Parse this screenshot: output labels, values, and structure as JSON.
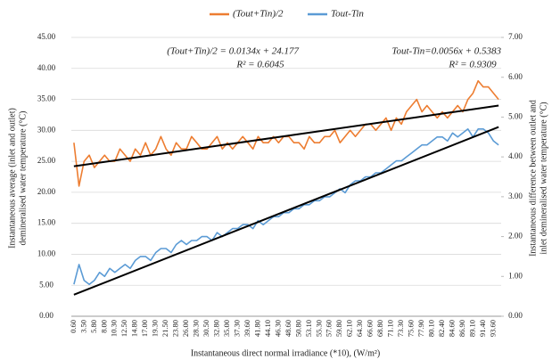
{
  "chart_data": {
    "type": "line",
    "x_label": "Instantaneous direct normal irradiance (*10), (W/m²)",
    "y_label": [
      "Instantaneous average (inlet and outlet)",
      "demineralised water temperature (°C)"
    ],
    "y2_label": [
      "Instantaneous difference between outlet and",
      "inlet demineralised water temperature (°C)"
    ],
    "categories": [
      "0.60",
      null,
      "3.50",
      null,
      "5.80",
      null,
      "8.00",
      null,
      "10.30",
      null,
      "12.50",
      null,
      "14.80",
      null,
      "17.00",
      null,
      "19.30",
      null,
      "21.50",
      null,
      "23.80",
      null,
      "26.00",
      null,
      "28.30",
      null,
      "30.50",
      null,
      "32.80",
      null,
      "35.00",
      null,
      "37.30",
      null,
      "39.60",
      null,
      "41.80",
      null,
      "44.10",
      null,
      "46.30",
      null,
      "48.60",
      null,
      "50.80",
      null,
      "53.10",
      null,
      "55.30",
      null,
      "57.60",
      null,
      "59.80",
      null,
      "62.10",
      null,
      "64.30",
      null,
      "66.60",
      null,
      "68.80",
      null,
      "71.10",
      null,
      "73.30",
      null,
      "75.60",
      null,
      "77.90",
      null,
      "80.10",
      null,
      "82.40",
      null,
      "84.60",
      null,
      "86.90",
      null,
      "89.10",
      null,
      "91.40",
      null,
      "93.60",
      null
    ],
    "series": [
      {
        "name": "(Tout+Tin)/2",
        "color": "#ed7d31",
        "axis": "y",
        "values": [
          28,
          21,
          25,
          26,
          24,
          25,
          26,
          25,
          25,
          27,
          26,
          25,
          27,
          26,
          28,
          26,
          27,
          29,
          27,
          26,
          28,
          27,
          27,
          29,
          28,
          27,
          27,
          28,
          29,
          27,
          28,
          27,
          28,
          29,
          28,
          27,
          29,
          28,
          28,
          29,
          28,
          29,
          29,
          28,
          28,
          27,
          29,
          28,
          28,
          29,
          29,
          30,
          28,
          29,
          30,
          29,
          30,
          31,
          31,
          30,
          31,
          32,
          30,
          32,
          31,
          33,
          34,
          35,
          33,
          34,
          33,
          32,
          33,
          32,
          33,
          34,
          33,
          35,
          36,
          38,
          37,
          37,
          36,
          35
        ]
      },
      {
        "name": "Tout-Tin",
        "color": "#5b9bd5",
        "axis": "y2",
        "values": [
          0.8,
          1.3,
          0.9,
          0.8,
          0.9,
          1.1,
          1.0,
          1.2,
          1.1,
          1.2,
          1.3,
          1.2,
          1.4,
          1.5,
          1.5,
          1.4,
          1.6,
          1.7,
          1.7,
          1.6,
          1.8,
          1.9,
          1.8,
          1.9,
          1.9,
          2.0,
          2.0,
          1.9,
          2.1,
          2.0,
          2.1,
          2.2,
          2.2,
          2.3,
          2.3,
          2.2,
          2.4,
          2.3,
          2.4,
          2.5,
          2.5,
          2.6,
          2.6,
          2.7,
          2.7,
          2.8,
          2.8,
          2.9,
          2.9,
          3.0,
          3.0,
          3.1,
          3.2,
          3.1,
          3.3,
          3.4,
          3.4,
          3.5,
          3.5,
          3.6,
          3.6,
          3.7,
          3.8,
          3.9,
          3.9,
          4.0,
          4.1,
          4.2,
          4.3,
          4.3,
          4.4,
          4.5,
          4.5,
          4.4,
          4.6,
          4.5,
          4.6,
          4.7,
          4.5,
          4.7,
          4.7,
          4.6,
          4.4,
          4.3
        ]
      }
    ],
    "trendlines": [
      {
        "axis": "y",
        "color": "#000000",
        "start": 24.2,
        "end": 34.0,
        "equation": "(Tout+Tin)/2 = 0.0134x + 24.177",
        "r2": "R² = 0.6045"
      },
      {
        "axis": "y2",
        "color": "#000000",
        "start": 0.54,
        "end": 4.75,
        "equation": "Tout-Tin=0.0056x + 0.5383",
        "r2": "R² = 0.9309"
      }
    ],
    "ylim": [
      0,
      45
    ],
    "yticks": [
      {
        "value": 0,
        "label": "0.00"
      },
      {
        "value": 5,
        "label": "5.00"
      },
      {
        "value": 10,
        "label": "10.00"
      },
      {
        "value": 15,
        "label": "15.00"
      },
      {
        "value": 20,
        "label": "20.00"
      },
      {
        "value": 25,
        "label": "25.00"
      },
      {
        "value": 30,
        "label": "30.00"
      },
      {
        "value": 35,
        "label": "35.00"
      },
      {
        "value": 40,
        "label": "40.00"
      },
      {
        "value": 45,
        "label": "45.00"
      }
    ],
    "y2lim": [
      0,
      7
    ],
    "y2ticks": [
      {
        "value": 0,
        "label": "0.00"
      },
      {
        "value": 1,
        "label": "1.00"
      },
      {
        "value": 2,
        "label": "2.00"
      },
      {
        "value": 3,
        "label": "3.00"
      },
      {
        "value": 4,
        "label": "4.00"
      },
      {
        "value": 5,
        "label": "5.00"
      },
      {
        "value": 6,
        "label": "6.00"
      },
      {
        "value": 7,
        "label": "7.00"
      }
    ],
    "grid": true,
    "legend": "top"
  }
}
